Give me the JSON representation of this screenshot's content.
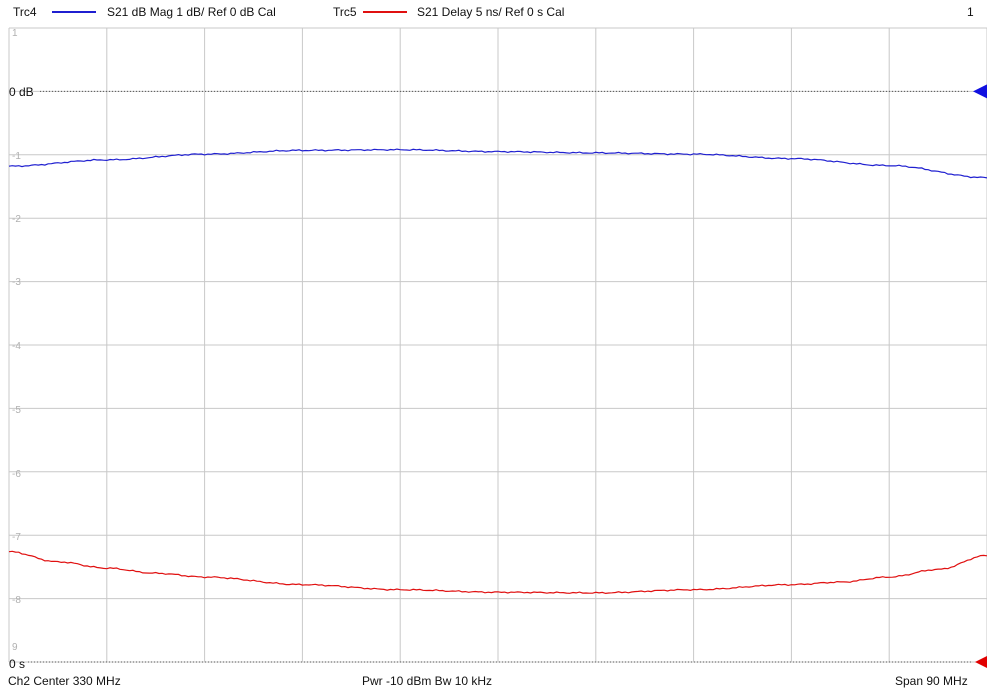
{
  "header": {
    "trc4_name": "Trc4",
    "trc4_desc": "S21  dB Mag  1 dB/ Ref 0 dB  Cal",
    "trc5_name": "Trc5",
    "trc5_desc": "S21  Delay   5 ns/ Ref 0 s    Cal",
    "window_number": "1"
  },
  "footer": {
    "left": "Ch2  Center  330 MHz",
    "middle": "Pwr  -10 dBm  Bw  10 kHz",
    "right": "Span  90 MHz"
  },
  "colors": {
    "trc4": "#1f1fd0",
    "trc5": "#e01010",
    "grid": "#c8c8c8",
    "ref_line": "#555555",
    "ref_marker_trc4": "#1010e0",
    "ref_marker_trc5": "#e00000"
  },
  "chart_data": {
    "type": "line",
    "divisions_labels": [
      "1",
      "0 dB",
      "-1",
      "-2",
      "-3",
      "-4",
      "-5",
      "-6",
      "-7",
      "-8",
      "9",
      "0 s"
    ],
    "ref_labels": {
      "trc4": "0 dB",
      "trc5": "0 s"
    },
    "x_divisions": 10,
    "y_divisions": 10,
    "series": [
      {
        "name": "Trc4",
        "scale": "1 dB/div",
        "ref_value": 0,
        "unit": "dB",
        "x_span_fraction": [
          0,
          0.1,
          0.2,
          0.3,
          0.4,
          0.5,
          0.6,
          0.7,
          0.8,
          0.9,
          1.0
        ],
        "values": [
          -1.18,
          -1.08,
          -0.99,
          -0.93,
          -0.92,
          -0.95,
          -0.97,
          -0.99,
          -1.06,
          -1.17,
          -1.36
        ]
      },
      {
        "name": "Trc5",
        "scale": "5 ns/div",
        "ref_value": 0,
        "unit": "ns",
        "x_span_fraction": [
          0,
          0.05,
          0.1,
          0.15,
          0.2,
          0.3,
          0.4,
          0.5,
          0.6,
          0.7,
          0.8,
          0.85,
          0.9,
          0.95,
          1.0
        ],
        "values": [
          8.7,
          7.9,
          7.4,
          7.0,
          6.7,
          6.1,
          5.7,
          5.5,
          5.45,
          5.7,
          6.1,
          6.3,
          6.7,
          7.3,
          8.4
        ]
      }
    ]
  }
}
